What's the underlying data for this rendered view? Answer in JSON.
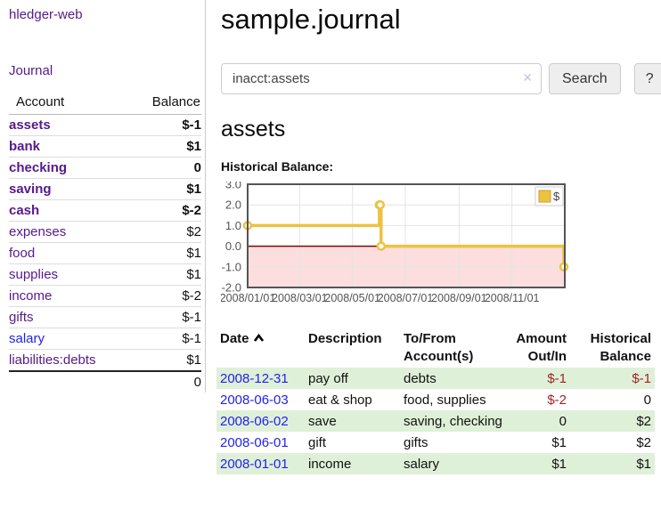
{
  "app": {
    "brand": "hledger-web"
  },
  "colors": {
    "link_purple": "#551a8b",
    "link_blue": "#2222ee",
    "negative": "#a02525",
    "negative_faded": "#c28282",
    "row_green": "#dff0d8",
    "chart_gold": "#edc240",
    "chart_negative_region": "#fcdede",
    "chart_zero_line": "#8b0000"
  },
  "sidebar": {
    "journal_link": "Journal",
    "account_header": "Account",
    "balance_header": "Balance",
    "accounts": [
      {
        "name": "assets",
        "balance": "$-1"
      },
      {
        "name": "bank",
        "balance": "$1"
      },
      {
        "name": "checking",
        "balance": "0"
      },
      {
        "name": "saving",
        "balance": "$1"
      },
      {
        "name": "cash",
        "balance": "$-2"
      },
      {
        "name": "expenses",
        "balance": "$2"
      },
      {
        "name": "food",
        "balance": "$1"
      },
      {
        "name": "supplies",
        "balance": "$1"
      },
      {
        "name": "income",
        "balance": "$-2"
      },
      {
        "name": "gifts",
        "balance": "$-1"
      },
      {
        "name": "salary",
        "balance": "$-1"
      },
      {
        "name": "liabilities:debts",
        "balance": "$1"
      }
    ],
    "total": "0"
  },
  "main": {
    "title": "sample.journal",
    "search": {
      "value": "inacct:assets",
      "clear_icon": "✕",
      "button": "Search",
      "help_button": "?"
    },
    "account_heading": "assets",
    "chart_label": "Historical Balance:"
  },
  "chart_data": {
    "type": "line",
    "step": true,
    "title": "Historical Balance",
    "series": [
      {
        "name": "$",
        "points": [
          {
            "date": "2008-01-01",
            "value": 1
          },
          {
            "date": "2008-06-01",
            "value": 2
          },
          {
            "date": "2008-06-02",
            "value": 2
          },
          {
            "date": "2008-06-03",
            "value": 0
          },
          {
            "date": "2008-12-31",
            "value": -1
          }
        ]
      }
    ],
    "xmin": "2008-01-01",
    "xmax": "2009-01-01",
    "ylim": [
      -2,
      3
    ],
    "yticks": [
      3,
      2,
      1,
      0,
      -1,
      -2
    ],
    "xticks": [
      {
        "date": "2008-01-01",
        "label": "2008/01/01"
      },
      {
        "date": "2008-03-01",
        "label": "2008/03/01"
      },
      {
        "date": "2008-05-01",
        "label": "2008/05/01"
      },
      {
        "date": "2008-07-01",
        "label": "2008/07/01"
      },
      {
        "date": "2008-09-01",
        "label": "2008/09/01"
      },
      {
        "date": "2008-11-01",
        "label": "2008/11/01"
      }
    ],
    "legend_position": "top-right",
    "grid": true
  },
  "register": {
    "headers": {
      "date": "Date",
      "description": "Description",
      "accounts": "To/From Account(s)",
      "amount": "Amount Out/In",
      "balance": "Historical Balance"
    },
    "rows": [
      {
        "date": "2008-12-31",
        "description": "pay off",
        "accounts": "debts",
        "amount": "$-1",
        "balance": "$-1"
      },
      {
        "date": "2008-06-03",
        "description": "eat & shop",
        "accounts": "food, supplies",
        "amount": "$-2",
        "balance": "0"
      },
      {
        "date": "2008-06-02",
        "description": "save",
        "accounts": "saving, checking",
        "amount": "0",
        "balance": "$2"
      },
      {
        "date": "2008-06-01",
        "description": "gift",
        "accounts": "gifts",
        "amount": "$1",
        "balance": "$2"
      },
      {
        "date": "2008-01-01",
        "description": "income",
        "accounts": "salary",
        "amount": "$1",
        "balance": "$1"
      }
    ]
  }
}
